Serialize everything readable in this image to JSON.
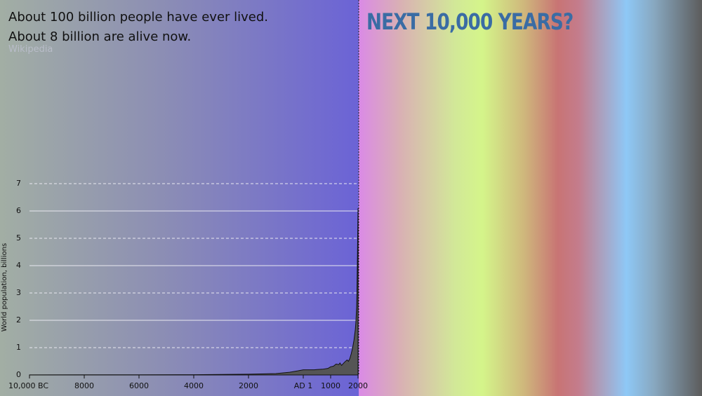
{
  "slide": {
    "lines": [
      "About 100 billion people have ever lived.",
      "About 8 billion are alive now."
    ],
    "source": "Wikipedia",
    "heading": "NEXT 10,000 YEARS?"
  },
  "chart_data": {
    "type": "area",
    "y_label": "World population, billions",
    "x": [
      -10000,
      -8000,
      -6000,
      -4000,
      -3000,
      -2000,
      -1000,
      -500,
      -200,
      0,
      200,
      400,
      500,
      700,
      900,
      1000,
      1100,
      1200,
      1300,
      1340,
      1400,
      1500,
      1600,
      1650,
      1700,
      1750,
      1800,
      1850,
      1900,
      1920,
      1940,
      1950,
      1960,
      1970,
      1980,
      1990,
      2000
    ],
    "values": [
      0.004,
      0.005,
      0.007,
      0.01,
      0.02,
      0.03,
      0.05,
      0.1,
      0.15,
      0.19,
      0.19,
      0.19,
      0.2,
      0.21,
      0.24,
      0.3,
      0.32,
      0.4,
      0.38,
      0.44,
      0.35,
      0.46,
      0.55,
      0.5,
      0.6,
      0.77,
      0.98,
      1.26,
      1.65,
      1.9,
      2.3,
      2.5,
      3.0,
      3.7,
      4.4,
      5.3,
      6.1
    ],
    "color": "#555555",
    "xlim": [
      -10000,
      2000
    ],
    "xticks": [
      {
        "value": -10000,
        "label": "10,000 BC"
      },
      {
        "value": -8000,
        "label": "8000"
      },
      {
        "value": -6000,
        "label": "6000"
      },
      {
        "value": -4000,
        "label": "4000"
      },
      {
        "value": -2000,
        "label": "2000"
      },
      {
        "value": 0,
        "label": "AD 1"
      },
      1000,
      2000
    ],
    "ylim": [
      0,
      7.4
    ],
    "yticks": [
      0,
      1,
      2,
      3,
      4,
      5,
      6,
      7
    ],
    "grid": true
  }
}
